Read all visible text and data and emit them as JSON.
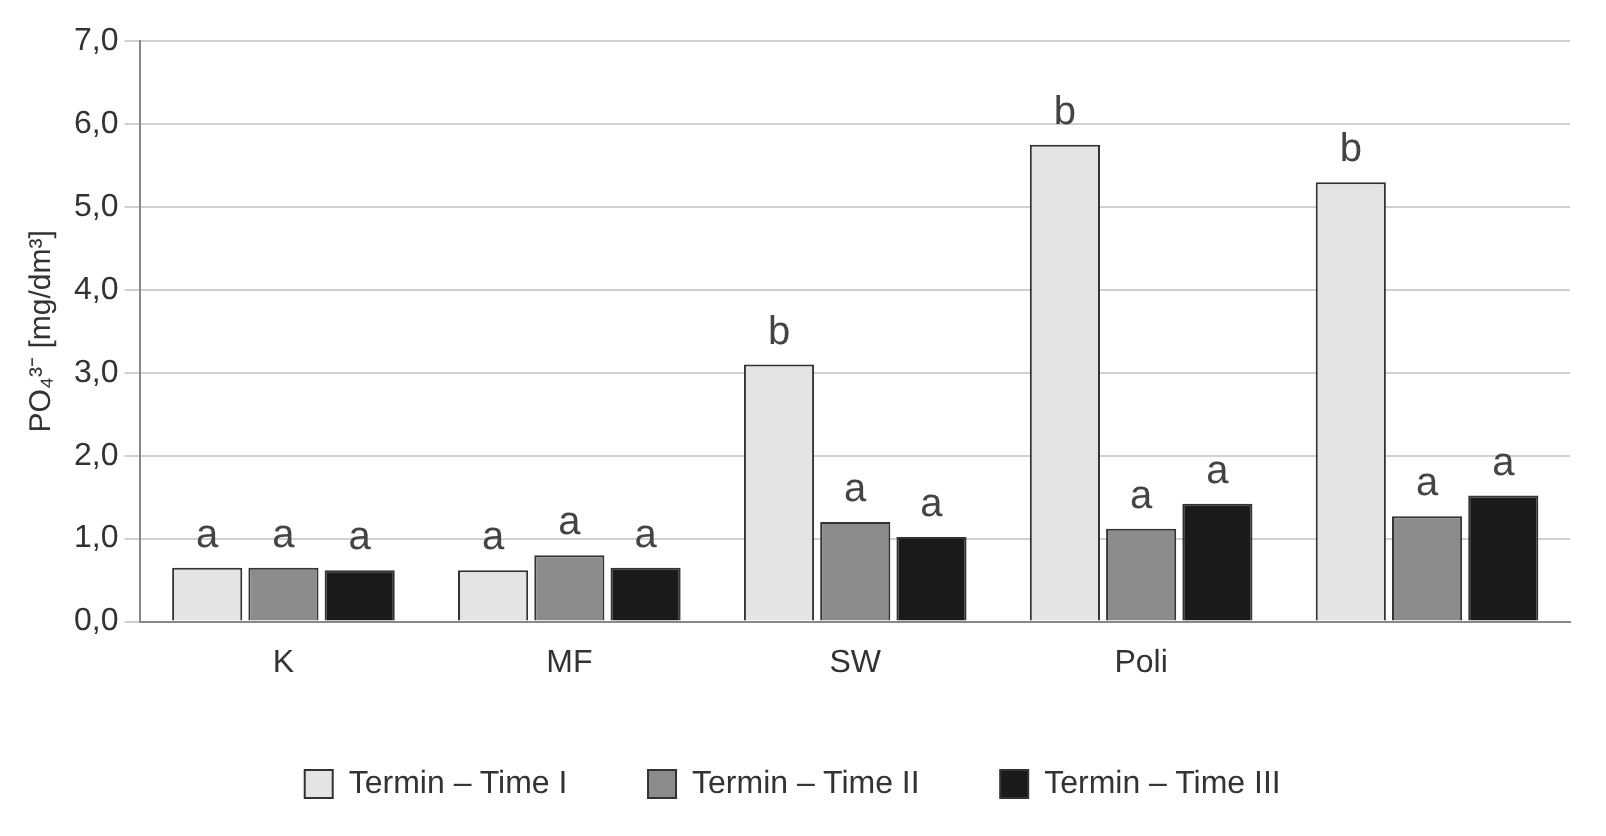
{
  "chart_data": {
    "type": "bar",
    "ylabel": "PO₄³⁻ [mg/dm³]",
    "categories": [
      "K",
      "MF",
      "SW",
      "Poli",
      null
    ],
    "series": [
      {
        "name": "Termin – Time I",
        "color": "#e4e4e4",
        "values": [
          0.65,
          0.62,
          3.1,
          5.75,
          5.3
        ],
        "value_labels": [
          "a",
          "a",
          "b",
          "b",
          "b"
        ]
      },
      {
        "name": "Termin – Time II",
        "color": "#8c8c8c",
        "values": [
          0.65,
          0.8,
          1.2,
          1.12,
          1.27
        ],
        "value_labels": [
          "a",
          "a",
          "a",
          "a",
          "a"
        ]
      },
      {
        "name": "Termin – Time III",
        "color": "#1a1a1a",
        "values": [
          0.62,
          0.65,
          1.02,
          1.42,
          1.52
        ],
        "value_labels": [
          "a",
          "a",
          "a",
          "a",
          "a"
        ]
      }
    ],
    "ylim": [
      0,
      7
    ],
    "yticks": [
      {
        "value": 0,
        "label": "0,0"
      },
      {
        "value": 1,
        "label": "1,0"
      },
      {
        "value": 2,
        "label": "2,0"
      },
      {
        "value": 3,
        "label": "3,0"
      },
      {
        "value": 4,
        "label": "4,0"
      },
      {
        "value": 5,
        "label": "5,0"
      },
      {
        "value": 6,
        "label": "6,0"
      },
      {
        "value": 7,
        "label": "7,0"
      }
    ],
    "grid": "y",
    "legend": "bottom"
  }
}
